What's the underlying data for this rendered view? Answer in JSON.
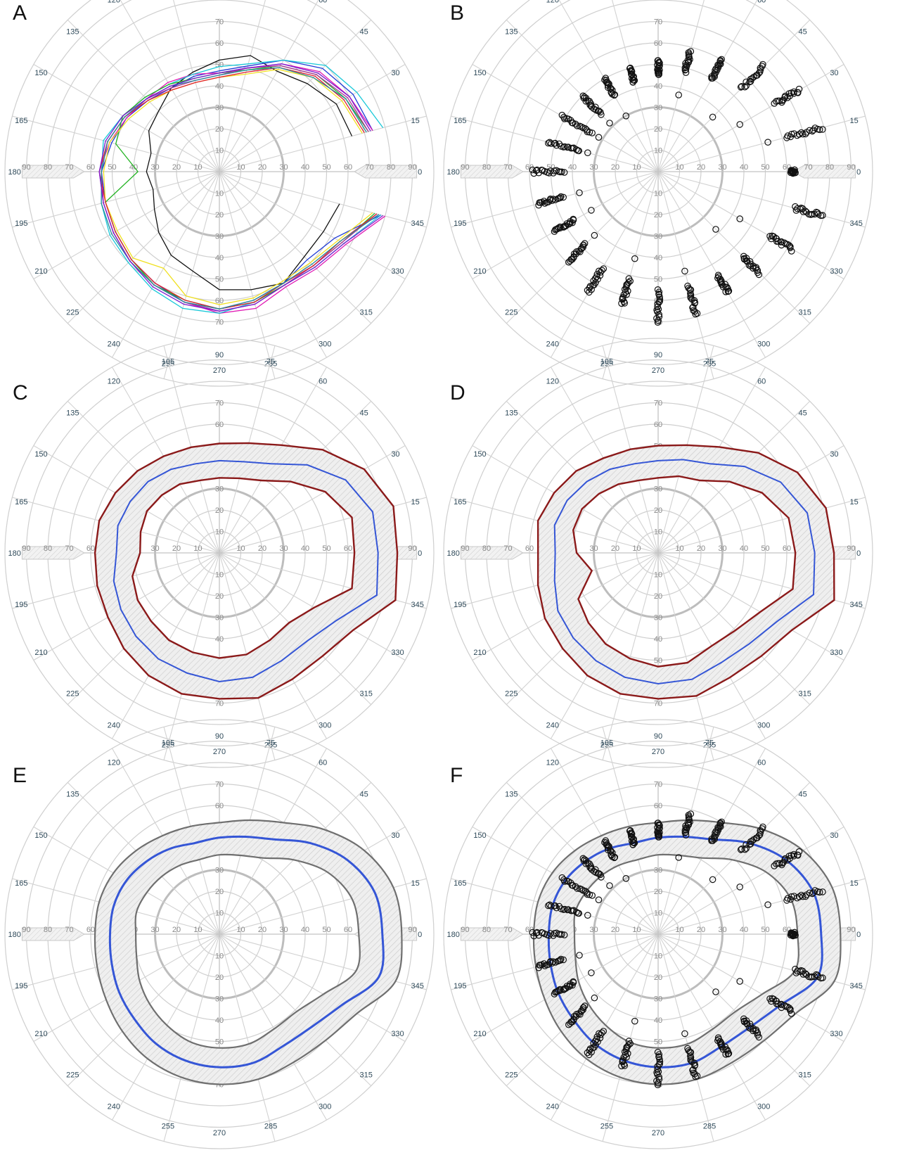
{
  "chart_data": [
    {
      "panel": "A",
      "type": "line",
      "xlabel": "",
      "ylabel": "",
      "angle_ticks": [
        0,
        15,
        30,
        45,
        60,
        75,
        90,
        105,
        120,
        135,
        150,
        165,
        180,
        195,
        210,
        225,
        240,
        255,
        270,
        285,
        300,
        315,
        330,
        345
      ],
      "radial_ticks": [
        10,
        20,
        30,
        40,
        50,
        60,
        70
      ],
      "horizontal_ticks": [
        90,
        80,
        70,
        60,
        50,
        40,
        30,
        20,
        10,
        10,
        20,
        30,
        40,
        50,
        60,
        70,
        80,
        90
      ],
      "rlim": [
        0,
        90
      ],
      "angles": [
        15,
        30,
        45,
        60,
        75,
        90,
        105,
        120,
        135,
        150,
        165,
        180,
        195,
        210,
        225,
        240,
        255,
        270,
        285,
        300,
        315,
        330,
        345
      ],
      "series_note_colors": [
        "#111111",
        "#1f3bd6",
        "#e01ab4",
        "#18c8d8",
        "#22b322",
        "#f0e020",
        "#b0309a",
        "#e02030",
        "#2a8a9a",
        "#7a1ad0"
      ],
      "series": [
        {
          "color": "#111111",
          "values": [
            64,
            63,
            58,
            54,
            56,
            52,
            48,
            45,
            40,
            38,
            33,
            34,
            32,
            35,
            40,
            45,
            48,
            55,
            57,
            60,
            56,
            56,
            58
          ]
        },
        {
          "color": "#1f3bd6",
          "values": [
            74,
            72,
            68,
            60,
            51,
            47,
            46,
            45,
            47,
            50,
            52,
            55,
            55,
            56,
            58,
            60,
            63,
            64,
            62,
            60,
            58,
            62,
            78
          ]
        },
        {
          "color": "#e01ab4",
          "values": [
            74,
            70,
            66,
            58,
            50,
            46,
            47,
            48,
            48,
            50,
            53,
            56,
            56,
            57,
            59,
            61,
            63,
            66,
            66,
            62,
            64,
            68,
            80
          ]
        },
        {
          "color": "#18c8d8",
          "values": [
            79,
            74,
            70,
            60,
            52,
            49,
            47,
            47,
            49,
            52,
            56,
            55,
            57,
            59,
            60,
            63,
            66,
            66,
            63,
            61,
            63,
            67,
            78
          ]
        },
        {
          "color": "#22b322",
          "values": [
            72,
            68,
            64,
            57,
            49,
            46,
            45,
            47,
            49,
            52,
            50,
            38,
            55,
            56,
            58,
            61,
            62,
            64,
            63,
            61,
            62,
            66,
            75
          ]
        },
        {
          "color": "#f0e020",
          "values": [
            69,
            66,
            62,
            55,
            47,
            44,
            43,
            44,
            46,
            49,
            53,
            54,
            55,
            55,
            57,
            52,
            60,
            62,
            61,
            59,
            60,
            64,
            74
          ]
        },
        {
          "color": "#b0309a",
          "values": [
            72,
            69,
            64,
            57,
            50,
            45,
            44,
            45,
            48,
            51,
            54,
            55,
            56,
            57,
            59,
            61,
            63,
            65,
            64,
            61,
            62,
            66,
            76
          ]
        },
        {
          "color": "#e02030",
          "values": [
            70,
            67,
            63,
            56,
            48,
            44,
            43,
            44,
            47,
            51,
            54,
            56,
            55,
            56,
            58,
            60,
            62,
            64,
            63,
            60,
            62,
            65,
            76
          ]
        },
        {
          "color": "#2a8a9a",
          "values": [
            71,
            68,
            62,
            56,
            49,
            45,
            44,
            46,
            48,
            51,
            54,
            55,
            57,
            58,
            59,
            61,
            63,
            64,
            62,
            60,
            61,
            65,
            77
          ]
        },
        {
          "color": "#7a1ad0",
          "values": [
            73,
            70,
            65,
            58,
            50,
            46,
            45,
            46,
            48,
            52,
            55,
            56,
            56,
            57,
            59,
            62,
            64,
            65,
            64,
            61,
            63,
            67,
            79
          ]
        }
      ]
    },
    {
      "panel": "B",
      "type": "scatter",
      "xlabel": "",
      "ylabel": "",
      "angle_ticks": [
        0,
        15,
        30,
        45,
        60,
        75,
        90,
        105,
        120,
        135,
        150,
        165,
        180,
        195,
        210,
        225,
        240,
        255,
        270,
        285,
        300,
        315,
        330,
        345
      ],
      "radial_ticks": [
        10,
        20,
        30,
        40,
        50,
        60,
        70
      ],
      "horizontal_ticks": [
        90,
        80,
        70,
        60,
        50,
        40,
        30,
        20,
        10,
        10,
        20,
        30,
        40,
        50,
        60,
        70,
        80,
        90
      ],
      "rlim": [
        0,
        90
      ],
      "angles": [
        0,
        15,
        30,
        45,
        60,
        75,
        90,
        105,
        120,
        135,
        150,
        165,
        180,
        195,
        210,
        225,
        240,
        255,
        270,
        285,
        300,
        315,
        330,
        345
      ],
      "radius_ranges": [
        [
          62,
          64
        ],
        [
          62,
          79
        ],
        [
          63,
          76
        ],
        [
          55,
          70
        ],
        [
          50,
          60
        ],
        [
          48,
          58
        ],
        [
          45,
          52
        ],
        [
          43,
          50
        ],
        [
          41,
          50
        ],
        [
          38,
          50
        ],
        [
          36,
          52
        ],
        [
          38,
          53
        ],
        [
          44,
          59
        ],
        [
          46,
          58
        ],
        [
          45,
          56
        ],
        [
          48,
          59
        ],
        [
          52,
          65
        ],
        [
          52,
          64
        ],
        [
          55,
          70
        ],
        [
          55,
          69
        ],
        [
          56,
          65
        ],
        [
          56,
          67
        ],
        [
          60,
          72
        ],
        [
          66,
          79
        ]
      ],
      "outliers": [
        [
          15,
          53
        ],
        [
          30,
          44
        ],
        [
          45,
          36
        ],
        [
          75,
          37
        ],
        [
          120,
          30
        ],
        [
          135,
          32
        ],
        [
          150,
          32
        ],
        [
          165,
          34
        ],
        [
          195,
          38
        ],
        [
          210,
          36
        ],
        [
          225,
          42
        ],
        [
          255,
          42
        ],
        [
          285,
          48
        ],
        [
          315,
          38
        ],
        [
          330,
          44
        ]
      ]
    },
    {
      "panel": "C",
      "type": "area",
      "xlabel": "",
      "ylabel": "",
      "angle_ticks": [
        0,
        15,
        30,
        45,
        60,
        75,
        90,
        105,
        120,
        135,
        150,
        165,
        180,
        195,
        210,
        225,
        240,
        255,
        270,
        285,
        300,
        315,
        330,
        345
      ],
      "radial_ticks": [
        10,
        20,
        30,
        40,
        50,
        60,
        70
      ],
      "horizontal_ticks": [
        90,
        80,
        70,
        60,
        50,
        40,
        30,
        20,
        10,
        10,
        20,
        30,
        40,
        50,
        60,
        70,
        80,
        90
      ],
      "rlim": [
        0,
        90
      ],
      "angles": [
        0,
        15,
        30,
        45,
        60,
        75,
        90,
        105,
        120,
        135,
        150,
        165,
        180,
        195,
        210,
        225,
        240,
        255,
        270,
        285,
        300,
        315,
        330,
        345
      ],
      "series": [
        {
          "color": "#8b1a1a",
          "role": "outer",
          "values": [
            83,
            84,
            78,
            68,
            58,
            53,
            51,
            51,
            52,
            54,
            56,
            58,
            58,
            59,
            60,
            63,
            66,
            68,
            68,
            70,
            68,
            68,
            72,
            85
          ]
        },
        {
          "color": "#3556d6",
          "role": "mean",
          "values": [
            74,
            74,
            68,
            58,
            48,
            44,
            43,
            43,
            45,
            47,
            48,
            49,
            48,
            51,
            53,
            55,
            57,
            58,
            60,
            60,
            58,
            58,
            63,
            76
          ]
        },
        {
          "color": "#8b1a1a",
          "role": "inner",
          "values": [
            63,
            64,
            57,
            47,
            39,
            36,
            35,
            35,
            37,
            38,
            39,
            38,
            37,
            42,
            44,
            45,
            47,
            48,
            49,
            49,
            47,
            46,
            51,
            64
          ]
        }
      ]
    },
    {
      "panel": "D",
      "type": "area",
      "xlabel": "",
      "ylabel": "",
      "angle_ticks": [
        0,
        15,
        30,
        45,
        60,
        75,
        90,
        105,
        120,
        135,
        150,
        165,
        180,
        195,
        210,
        225,
        240,
        255,
        270,
        285,
        300,
        315,
        330,
        345
      ],
      "radial_ticks": [
        10,
        20,
        30,
        40,
        50,
        60,
        70
      ],
      "horizontal_ticks": [
        90,
        80,
        70,
        60,
        50,
        40,
        30,
        20,
        10,
        10,
        20,
        30,
        40,
        50,
        60,
        70,
        80,
        90
      ],
      "rlim": [
        0,
        90
      ],
      "angles": [
        0,
        15,
        30,
        45,
        60,
        75,
        90,
        105,
        120,
        135,
        150,
        165,
        180,
        195,
        210,
        225,
        240,
        255,
        270,
        285,
        300,
        315,
        330,
        345
      ],
      "series": [
        {
          "color": "#8b1a1a",
          "role": "outer",
          "values": [
            82,
            81,
            75,
            66,
            57,
            52,
            50,
            50,
            51,
            54,
            56,
            58,
            56,
            58,
            61,
            63,
            66,
            68,
            68,
            69,
            67,
            68,
            72,
            85
          ]
        },
        {
          "color": "#3556d6",
          "role": "mean",
          "values": [
            73,
            72,
            66,
            57,
            48,
            45,
            43,
            43,
            45,
            47,
            49,
            50,
            48,
            50,
            54,
            56,
            58,
            60,
            61,
            61,
            59,
            60,
            64,
            75
          ]
        },
        {
          "color": "#8b1a1a",
          "role": "inner",
          "values": [
            64,
            63,
            56,
            47,
            39,
            37,
            35,
            35,
            37,
            39,
            41,
            41,
            38,
            32,
            43,
            46,
            49,
            51,
            53,
            53,
            50,
            51,
            55,
            65
          ]
        }
      ]
    },
    {
      "panel": "E",
      "type": "area",
      "xlabel": "",
      "ylabel": "",
      "angle_ticks": [
        0,
        15,
        30,
        45,
        60,
        75,
        90,
        105,
        120,
        135,
        150,
        165,
        180,
        195,
        210,
        225,
        240,
        255,
        270,
        285,
        300,
        315,
        330,
        345
      ],
      "radial_ticks": [
        10,
        20,
        30,
        40,
        50,
        60,
        70
      ],
      "horizontal_ticks": [
        90,
        80,
        70,
        60,
        50,
        40,
        30,
        20,
        10,
        10,
        20,
        30,
        40,
        50,
        60,
        70,
        80,
        90
      ],
      "rlim": [
        0,
        90
      ],
      "angles": [
        0,
        15,
        30,
        45,
        60,
        75,
        90,
        105,
        120,
        135,
        150,
        165,
        180,
        195,
        210,
        225,
        240,
        255,
        270,
        285,
        300,
        315,
        330,
        345
      ],
      "series": [
        {
          "color": "#6f6f6f",
          "role": "outer",
          "values": [
            85,
            84,
            78,
            69,
            60,
            55,
            52,
            52,
            53,
            55,
            57,
            58,
            58,
            59,
            61,
            64,
            67,
            69,
            70,
            70,
            69,
            70,
            74,
            85
          ]
        },
        {
          "color": "#3556d6",
          "role": "mean",
          "values": [
            76,
            75,
            69,
            60,
            51,
            47,
            45,
            44,
            46,
            48,
            50,
            51,
            51,
            52,
            54,
            56,
            59,
            61,
            62,
            62,
            60,
            61,
            66,
            77
          ]
        },
        {
          "color": "#6f6f6f",
          "role": "inner",
          "values": [
            65,
            64,
            58,
            49,
            41,
            38,
            37,
            36,
            37,
            38,
            39,
            40,
            39,
            40,
            43,
            46,
            49,
            52,
            53,
            53,
            51,
            51,
            56,
            66
          ]
        }
      ]
    },
    {
      "panel": "F",
      "type": "area",
      "xlabel": "",
      "ylabel": "",
      "angle_ticks": [
        0,
        15,
        30,
        45,
        60,
        75,
        90,
        105,
        120,
        135,
        150,
        165,
        180,
        195,
        210,
        225,
        240,
        255,
        270,
        285,
        300,
        315,
        330,
        345
      ],
      "radial_ticks": [
        10,
        20,
        30,
        40,
        50,
        60,
        70
      ],
      "horizontal_ticks": [
        90,
        80,
        70,
        60,
        50,
        40,
        30,
        20,
        10,
        10,
        20,
        30,
        40,
        50,
        60,
        70,
        80,
        90
      ],
      "rlim": [
        0,
        90
      ],
      "angles": [
        0,
        15,
        30,
        45,
        60,
        75,
        90,
        105,
        120,
        135,
        150,
        165,
        180,
        195,
        210,
        225,
        240,
        255,
        270,
        285,
        300,
        315,
        330,
        345
      ],
      "series": [
        {
          "color": "#6f6f6f",
          "role": "outer",
          "values": [
            85,
            84,
            78,
            69,
            60,
            55,
            52,
            52,
            53,
            55,
            57,
            58,
            58,
            59,
            61,
            64,
            67,
            69,
            70,
            70,
            69,
            70,
            74,
            85
          ]
        },
        {
          "color": "#3556d6",
          "role": "mean",
          "values": [
            76,
            75,
            69,
            60,
            51,
            47,
            45,
            44,
            46,
            48,
            50,
            51,
            51,
            52,
            54,
            56,
            59,
            61,
            62,
            62,
            60,
            61,
            66,
            77
          ]
        },
        {
          "color": "#6f6f6f",
          "role": "inner",
          "values": [
            65,
            64,
            58,
            49,
            41,
            38,
            37,
            36,
            37,
            38,
            39,
            40,
            39,
            40,
            43,
            46,
            49,
            52,
            53,
            53,
            51,
            51,
            56,
            66
          ]
        }
      ],
      "overlay_points_from": "B"
    }
  ]
}
